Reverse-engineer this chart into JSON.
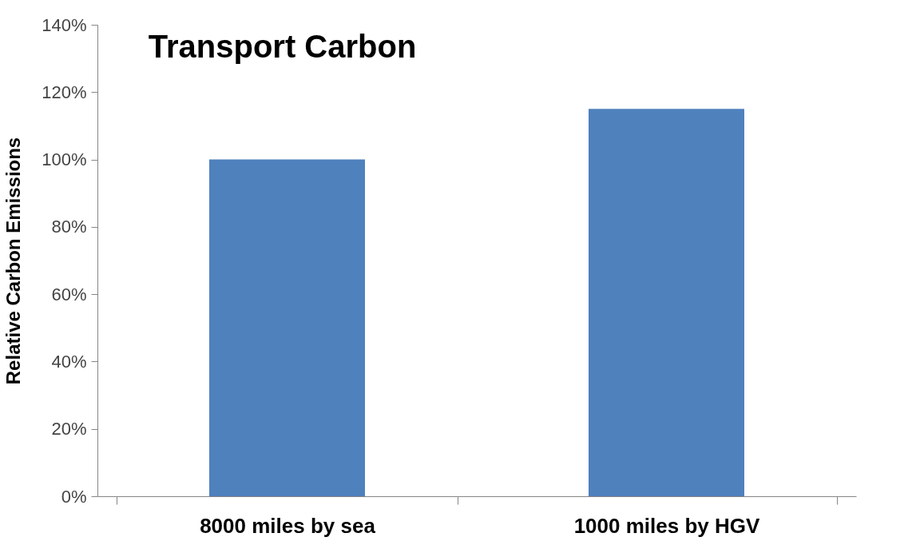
{
  "chart_data": {
    "type": "bar",
    "title": "Transport Carbon",
    "ylabel": "Relative Carbon Emissions",
    "categories": [
      "8000 miles by sea",
      "1000 miles by HGV"
    ],
    "values": [
      100,
      115
    ],
    "color": "#4f81bd",
    "ylim": [
      0,
      140
    ],
    "yticks": [
      {
        "value": 0,
        "label": "0%"
      },
      {
        "value": 20,
        "label": "20%"
      },
      {
        "value": 40,
        "label": "40%"
      },
      {
        "value": 60,
        "label": "60%"
      },
      {
        "value": 80,
        "label": "80%"
      },
      {
        "value": 100,
        "label": "100%"
      },
      {
        "value": 120,
        "label": "120%"
      },
      {
        "value": 140,
        "label": "140%"
      }
    ],
    "grid": false
  }
}
